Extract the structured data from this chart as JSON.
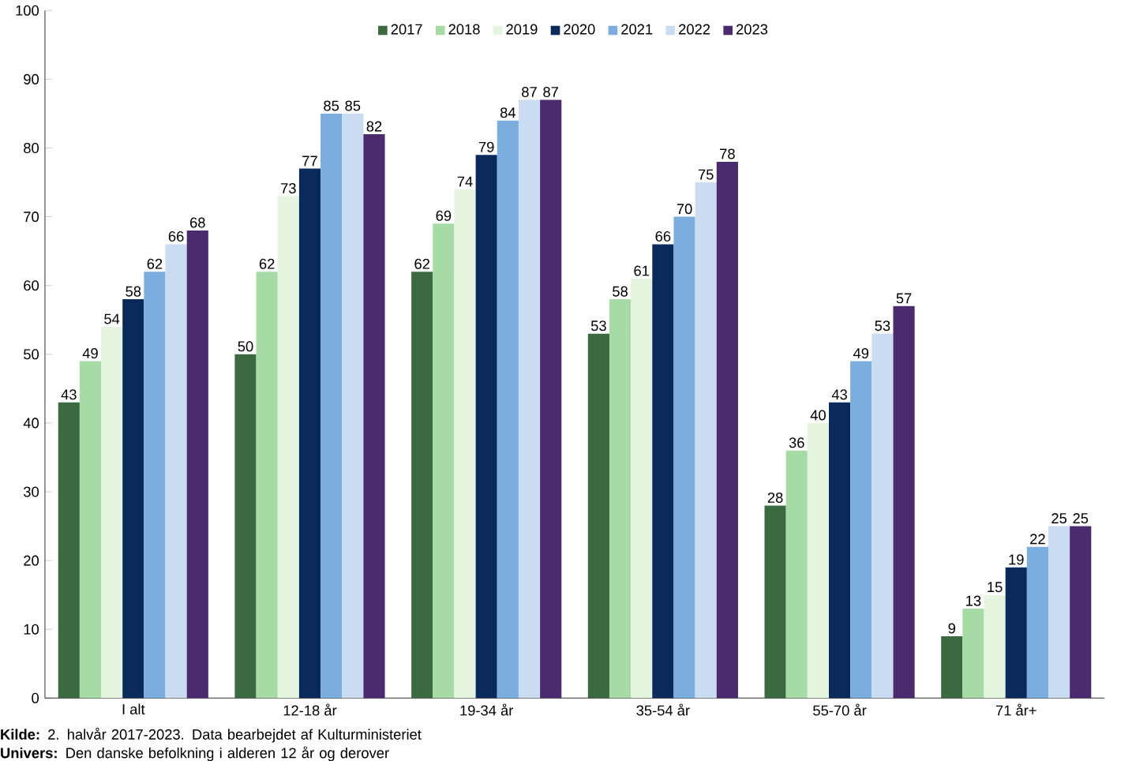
{
  "chart_data": {
    "type": "bar",
    "categories": [
      "I alt",
      "12-18 år",
      "19-34 år",
      "35-54 år",
      "55-70 år",
      "71 år+"
    ],
    "series": [
      {
        "name": "2017",
        "color": "#3b6a41",
        "values": [
          43,
          50,
          62,
          53,
          28,
          9
        ]
      },
      {
        "name": "2018",
        "color": "#a6dba6",
        "values": [
          49,
          62,
          69,
          58,
          36,
          13
        ]
      },
      {
        "name": "2019",
        "color": "#e4f4de",
        "values": [
          54,
          73,
          74,
          61,
          40,
          15
        ]
      },
      {
        "name": "2020",
        "color": "#0b2a5c",
        "values": [
          58,
          77,
          79,
          66,
          43,
          19
        ]
      },
      {
        "name": "2021",
        "color": "#7badde",
        "values": [
          62,
          85,
          84,
          70,
          49,
          22
        ]
      },
      {
        "name": "2022",
        "color": "#c9dcf1",
        "values": [
          66,
          85,
          87,
          75,
          53,
          25
        ]
      },
      {
        "name": "2023",
        "color": "#4b2b6d",
        "values": [
          68,
          82,
          87,
          78,
          57,
          25
        ]
      }
    ],
    "ylim": [
      0,
      100
    ],
    "yticks": [
      0,
      10,
      20,
      30,
      40,
      50,
      60,
      70,
      80,
      90,
      100
    ],
    "grid": false,
    "legend": "top",
    "data_labels": true,
    "annotations": [
      "**Kilde:** 2. halvår 2017-2023. Data bearbejdet af Kulturministeriet",
      "**Univers:** Den danske befolkning i alderen 12 år og derover"
    ]
  }
}
